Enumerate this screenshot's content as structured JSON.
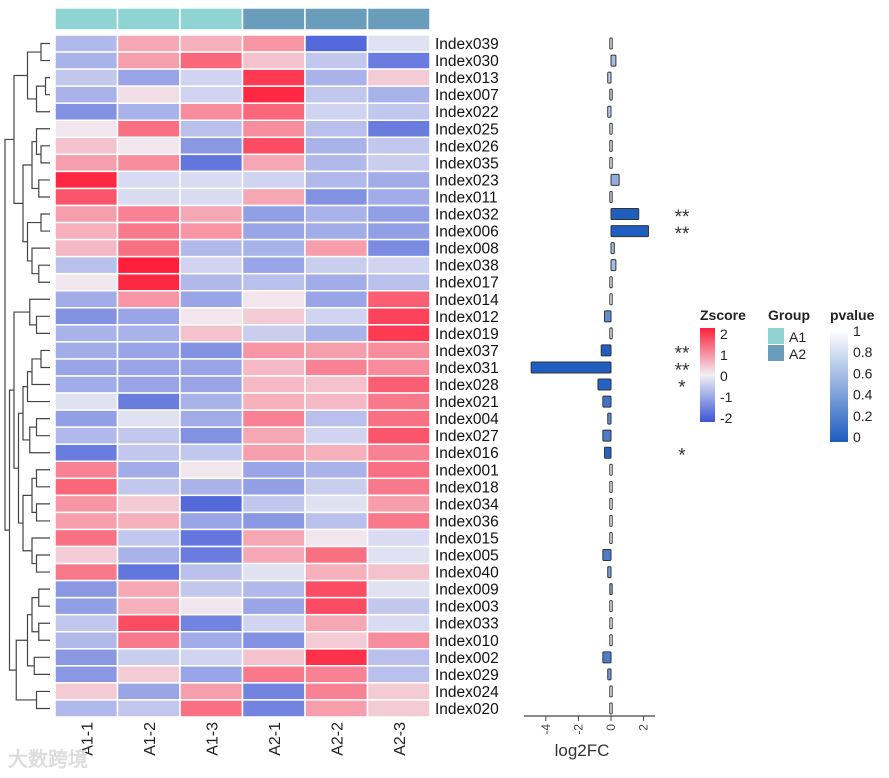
{
  "chart_data": {
    "type": "heatmap",
    "columns": [
      "A1-1",
      "A1-2",
      "A1-3",
      "A2-1",
      "A2-2",
      "A2-3"
    ],
    "groups": [
      "A1",
      "A1",
      "A1",
      "A2",
      "A2",
      "A2"
    ],
    "group_colors": {
      "A1": "#8fd3d3",
      "A2": "#6a9dbc"
    },
    "rows": [
      {
        "name": "Index039",
        "z": [
          -0.8,
          0.8,
          0.7,
          1.0,
          -2.0,
          -0.2
        ],
        "log2fc": 0.0,
        "pvalue": 0.9,
        "sig": ""
      },
      {
        "name": "Index030",
        "z": [
          -0.9,
          0.9,
          1.5,
          0.5,
          -0.6,
          -1.7
        ],
        "log2fc": 0.3,
        "pvalue": 0.6,
        "sig": ""
      },
      {
        "name": "Index013",
        "z": [
          -0.6,
          -1.1,
          -0.4,
          2.0,
          -0.9,
          0.4
        ],
        "log2fc": -0.2,
        "pvalue": 0.7,
        "sig": ""
      },
      {
        "name": "Index007",
        "z": [
          -0.9,
          0.2,
          -0.4,
          2.2,
          -0.6,
          -0.9
        ],
        "log2fc": -0.1,
        "pvalue": 0.8,
        "sig": ""
      },
      {
        "name": "Index022",
        "z": [
          -1.4,
          -0.9,
          1.1,
          1.5,
          -0.4,
          -0.6
        ],
        "log2fc": -0.2,
        "pvalue": 0.7,
        "sig": ""
      },
      {
        "name": "Index025",
        "z": [
          0.1,
          1.4,
          -0.7,
          1.1,
          -0.7,
          -1.7
        ],
        "log2fc": 0.05,
        "pvalue": 0.9,
        "sig": ""
      },
      {
        "name": "Index026",
        "z": [
          0.5,
          0.1,
          -1.3,
          1.8,
          -0.9,
          -0.6
        ],
        "log2fc": -0.05,
        "pvalue": 0.9,
        "sig": ""
      },
      {
        "name": "Index035",
        "z": [
          0.9,
          1.1,
          -1.8,
          0.8,
          -0.8,
          -0.5
        ],
        "log2fc": 0.02,
        "pvalue": 0.95,
        "sig": ""
      },
      {
        "name": "Index023",
        "z": [
          2.2,
          -0.3,
          -0.3,
          -0.4,
          -0.8,
          -1.0
        ],
        "log2fc": 0.5,
        "pvalue": 0.5,
        "sig": ""
      },
      {
        "name": "Index011",
        "z": [
          1.7,
          -0.3,
          -0.3,
          0.8,
          -1.4,
          -1.0
        ],
        "log2fc": 0.1,
        "pvalue": 0.8,
        "sig": ""
      },
      {
        "name": "Index032",
        "z": [
          0.9,
          1.2,
          0.8,
          -1.2,
          -0.9,
          -1.2
        ],
        "log2fc": 1.7,
        "pvalue": 0.01,
        "sig": "**"
      },
      {
        "name": "Index006",
        "z": [
          0.7,
          1.3,
          1.0,
          -1.1,
          -1.0,
          -1.2
        ],
        "log2fc": 2.3,
        "pvalue": 0.005,
        "sig": "**"
      },
      {
        "name": "Index008",
        "z": [
          0.6,
          1.4,
          -0.8,
          -0.9,
          0.9,
          -1.5
        ],
        "log2fc": 0.2,
        "pvalue": 0.6,
        "sig": ""
      },
      {
        "name": "Index038",
        "z": [
          -0.7,
          2.3,
          -0.4,
          -1.1,
          -0.5,
          -0.4
        ],
        "log2fc": 0.3,
        "pvalue": 0.6,
        "sig": ""
      },
      {
        "name": "Index017",
        "z": [
          0.1,
          2.2,
          -0.8,
          -0.7,
          -1.0,
          -0.7
        ],
        "log2fc": 0.05,
        "pvalue": 0.9,
        "sig": ""
      },
      {
        "name": "Index014",
        "z": [
          -1.0,
          1.0,
          -1.1,
          0.1,
          -1.1,
          1.6
        ],
        "log2fc": 0.02,
        "pvalue": 0.95,
        "sig": ""
      },
      {
        "name": "Index012",
        "z": [
          -1.4,
          -1.1,
          0.1,
          0.4,
          -0.4,
          1.9
        ],
        "log2fc": -0.4,
        "pvalue": 0.3,
        "sig": ""
      },
      {
        "name": "Index019",
        "z": [
          -0.9,
          -0.9,
          0.5,
          -0.5,
          -0.9,
          2.0
        ],
        "log2fc": 0.05,
        "pvalue": 0.9,
        "sig": ""
      },
      {
        "name": "Index037",
        "z": [
          -1.0,
          -1.1,
          -1.4,
          1.0,
          0.9,
          1.1
        ],
        "log2fc": -0.6,
        "pvalue": 0.01,
        "sig": "**"
      },
      {
        "name": "Index031",
        "z": [
          -1.1,
          -1.1,
          -1.1,
          0.6,
          1.2,
          1.1
        ],
        "log2fc": -4.9,
        "pvalue": 0.005,
        "sig": "**"
      },
      {
        "name": "Index028",
        "z": [
          -1.0,
          -1.1,
          -1.1,
          0.6,
          0.5,
          1.6
        ],
        "log2fc": -0.8,
        "pvalue": 0.03,
        "sig": "*"
      },
      {
        "name": "Index021",
        "z": [
          -0.2,
          -1.7,
          -0.9,
          0.7,
          0.6,
          1.3
        ],
        "log2fc": -0.5,
        "pvalue": 0.15,
        "sig": ""
      },
      {
        "name": "Index004",
        "z": [
          -1.2,
          -0.2,
          -1.0,
          1.2,
          -0.7,
          1.4
        ],
        "log2fc": -0.2,
        "pvalue": 0.3,
        "sig": ""
      },
      {
        "name": "Index027",
        "z": [
          -0.8,
          -0.6,
          -1.4,
          0.8,
          -0.4,
          1.7
        ],
        "log2fc": -0.5,
        "pvalue": 0.2,
        "sig": ""
      },
      {
        "name": "Index016",
        "z": [
          -1.7,
          -0.6,
          -0.6,
          0.9,
          0.7,
          1.2
        ],
        "log2fc": -0.4,
        "pvalue": 0.04,
        "sig": "*"
      },
      {
        "name": "Index001",
        "z": [
          1.2,
          -1.0,
          0.1,
          -1.1,
          -0.9,
          1.4
        ],
        "log2fc": 0.02,
        "pvalue": 0.95,
        "sig": ""
      },
      {
        "name": "Index018",
        "z": [
          1.5,
          -0.6,
          -0.9,
          -1.2,
          -0.5,
          1.3
        ],
        "log2fc": 0.02,
        "pvalue": 0.95,
        "sig": ""
      },
      {
        "name": "Index034",
        "z": [
          1.0,
          0.4,
          -2.0,
          -0.6,
          -0.2,
          0.9
        ],
        "log2fc": 0.02,
        "pvalue": 0.95,
        "sig": ""
      },
      {
        "name": "Index036",
        "z": [
          0.9,
          0.7,
          -1.1,
          -1.3,
          -0.7,
          1.3
        ],
        "log2fc": 0.02,
        "pvalue": 0.95,
        "sig": ""
      },
      {
        "name": "Index015",
        "z": [
          1.4,
          -0.6,
          -1.8,
          0.8,
          0.1,
          -0.3
        ],
        "log2fc": 0.02,
        "pvalue": 0.95,
        "sig": ""
      },
      {
        "name": "Index005",
        "z": [
          0.4,
          -0.9,
          -1.7,
          0.8,
          1.4,
          -0.2
        ],
        "log2fc": -0.5,
        "pvalue": 0.2,
        "sig": ""
      },
      {
        "name": "Index040",
        "z": [
          1.3,
          -1.8,
          -0.7,
          -0.2,
          0.7,
          0.5
        ],
        "log2fc": -0.2,
        "pvalue": 0.4,
        "sig": ""
      },
      {
        "name": "Index009",
        "z": [
          -1.3,
          0.8,
          -0.6,
          -0.8,
          1.8,
          -0.2
        ],
        "log2fc": -0.1,
        "pvalue": 0.5,
        "sig": ""
      },
      {
        "name": "Index003",
        "z": [
          -1.2,
          0.7,
          0.1,
          -1.1,
          1.8,
          -0.6
        ],
        "log2fc": 0.02,
        "pvalue": 0.95,
        "sig": ""
      },
      {
        "name": "Index033",
        "z": [
          -0.6,
          1.8,
          -1.6,
          -0.4,
          0.8,
          -0.3
        ],
        "log2fc": 0.02,
        "pvalue": 0.95,
        "sig": ""
      },
      {
        "name": "Index010",
        "z": [
          -0.8,
          1.3,
          -1.0,
          -1.4,
          0.4,
          1.1
        ],
        "log2fc": 0.02,
        "pvalue": 0.95,
        "sig": ""
      },
      {
        "name": "Index002",
        "z": [
          -1.3,
          -0.5,
          -0.4,
          0.5,
          2.1,
          -0.7
        ],
        "log2fc": -0.5,
        "pvalue": 0.2,
        "sig": ""
      },
      {
        "name": "Index029",
        "z": [
          -1.3,
          0.4,
          -1.1,
          1.3,
          1.2,
          -0.7
        ],
        "log2fc": -0.2,
        "pvalue": 0.4,
        "sig": ""
      },
      {
        "name": "Index024",
        "z": [
          0.4,
          -1.1,
          0.9,
          -1.6,
          1.2,
          0.4
        ],
        "log2fc": 0.02,
        "pvalue": 0.95,
        "sig": ""
      },
      {
        "name": "Index020",
        "z": [
          -0.8,
          -0.6,
          1.4,
          -1.6,
          0.9,
          0.4
        ],
        "log2fc": 0.02,
        "pvalue": 0.95,
        "sig": ""
      }
    ],
    "bar_axis": {
      "xlabel": "log2FC",
      "ticks": [
        -4,
        -2,
        0,
        2
      ],
      "tick_labels": [
        "-4",
        "-2",
        "0",
        "2"
      ],
      "xlim": [
        -5.2,
        2.4
      ]
    },
    "legends": {
      "zscore": {
        "title": "Zscore",
        "ticks": [
          "2",
          "1",
          "0",
          "-1",
          "-2"
        ],
        "low": "#3b55d6",
        "mid": "#f0eff5",
        "high": "#ff1f3a"
      },
      "group": {
        "title": "Group",
        "items": [
          "A1",
          "A2"
        ]
      },
      "pvalue": {
        "title": "pvalue",
        "ticks": [
          "1",
          "0.8",
          "0.6",
          "0.4",
          "0.2",
          "0"
        ],
        "low": "#1e5cbf",
        "high": "#ffffff"
      }
    }
  },
  "watermark": "大数跨境"
}
